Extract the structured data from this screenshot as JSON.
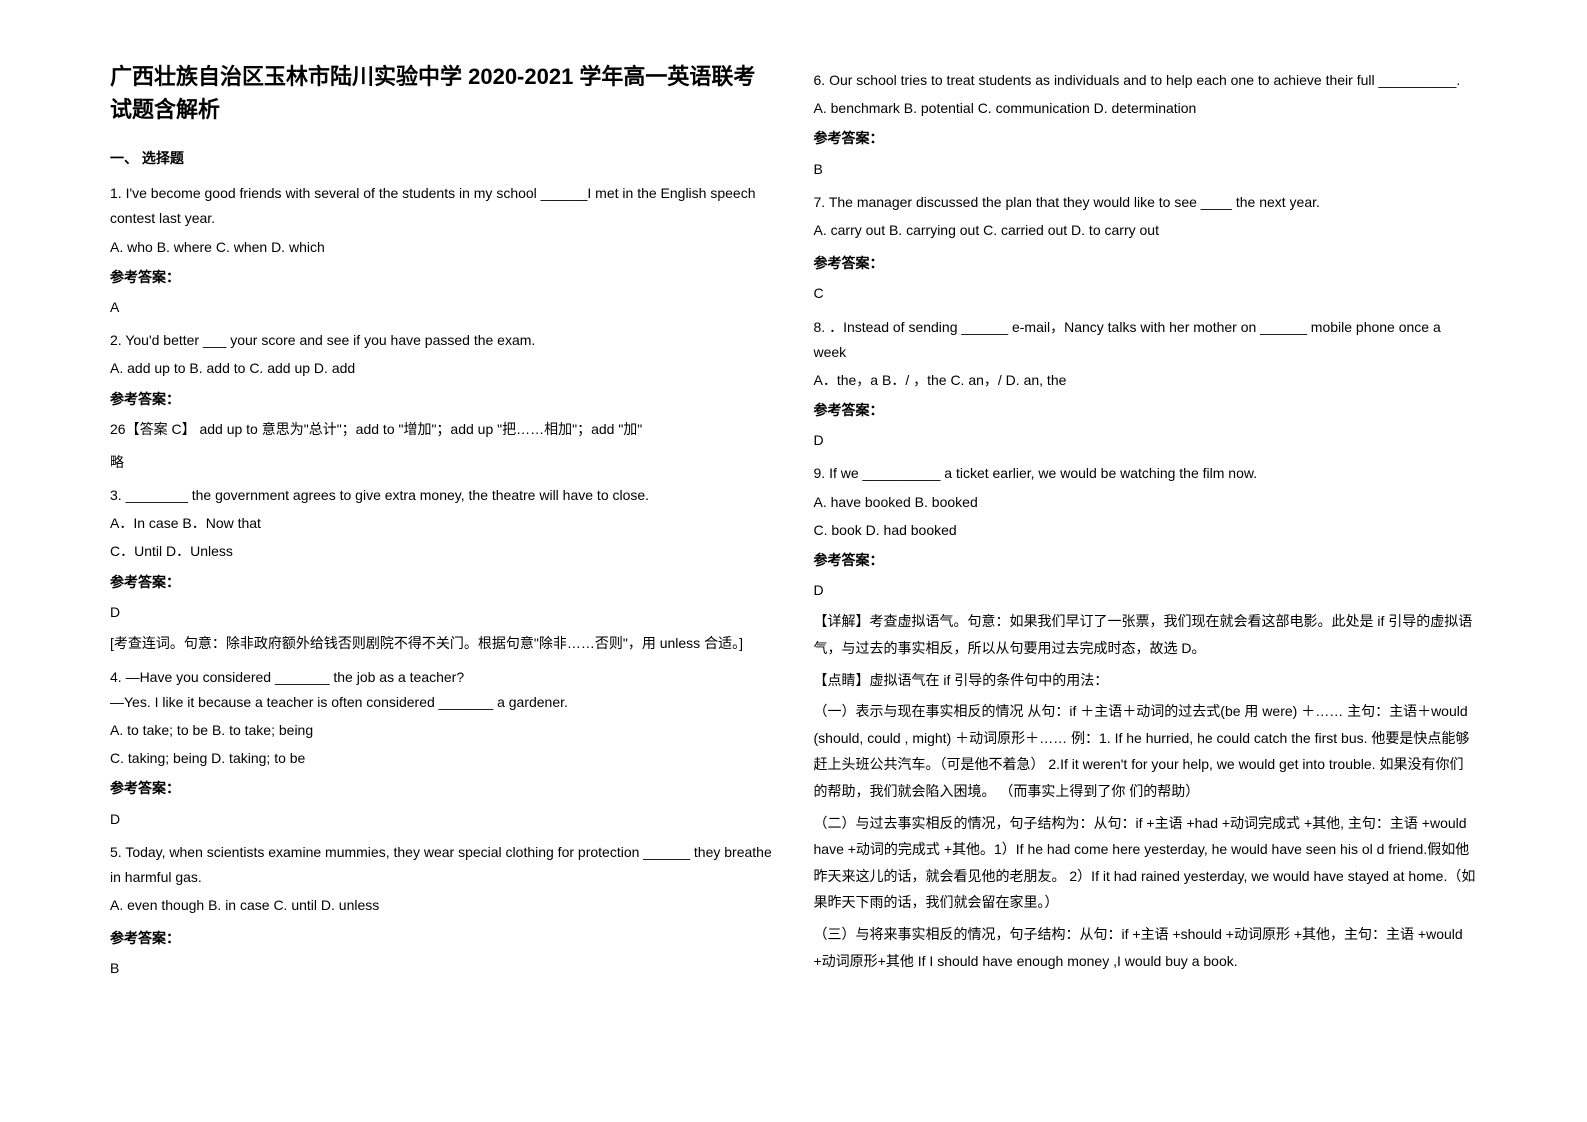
{
  "title": "广西壮族自治区玉林市陆川实验中学 2020-2021 学年高一英语联考试题含解析",
  "section1_header": "一、 选择题",
  "q1": {
    "text": "1. I've become good friends with several of the students in my school ______I met in the English speech contest last year.",
    "options": "   A. who        B. where      C. when      D. which",
    "answer_label": "参考答案：",
    "answer": "A"
  },
  "q2": {
    "text": "2. You'd better ___ your score and see if you have passed the exam.",
    "options": "  A. add up to   B. add to     C. add up      D. add",
    "answer_label": "参考答案：",
    "answer": "26【答案 C】 add up to 意思为\"总计\"；add to \"增加\"；add up \"把……相加\"；add \"加\"",
    "extra": "略"
  },
  "q3": {
    "text": "3. ________ the government agrees to give extra money, the theatre will have to close.",
    "options1": "A．In case       B．Now that",
    "options2": "C．Until        D．Unless",
    "answer_label": "参考答案：",
    "answer": "D",
    "explanation": "[考查连词。句意：除非政府额外给钱否则剧院不得不关门。根据句意\"除非……否则\"，用 unless 合适。]"
  },
  "q4": {
    "text": "4. —Have you considered _______ the job as a teacher?",
    "text2": "    —Yes. I like it because a teacher is often considered _______ a gardener.",
    "options1": "    A. to take; to be                           B. to take; being",
    "options2": "    C. taking; being                            D. taking; to be",
    "answer_label": "参考答案：",
    "answer": "D"
  },
  "q5": {
    "text": "5. Today, when scientists examine mummies, they wear special clothing for protection ______ they breathe in harmful gas.",
    "options": "A. even though  B. in case                    C. until  D. unless",
    "answer_label": "参考答案：",
    "answer": "B"
  },
  "q6": {
    "text": "6. Our school tries to treat students as individuals and to help each one to achieve          their full __________.",
    "options": "  A. benchmark B. potential      C. communication        D. determination",
    "answer_label": "参考答案：",
    "answer": "B"
  },
  "q7": {
    "text": "7. The manager discussed the plan that they would like to see ____ the next year.",
    "options": "A. carry out        B. carrying out      C. carried out      D. to carry out",
    "answer_label": "参考答案：",
    "answer": "C"
  },
  "q8": {
    "text": "8. ．Instead of sending ______ e-mail，Nancy talks with her mother on ______      mobile phone once a week",
    "options": "   A．the，a   B．/ ，the   C. an，/  D. an, the",
    "answer_label": "参考答案：",
    "answer": "D"
  },
  "q9": {
    "text": "9. If we __________ a ticket earlier, we would be watching the film now.",
    "options1": "A. have booked    B. booked",
    "options2": "C. book    D. had booked",
    "answer_label": "参考答案：",
    "answer": "D",
    "exp1": "【详解】考查虚拟语气。句意：如果我们早订了一张票，我们现在就会看这部电影。此处是 if 引导的虚拟语气，与过去的事实相反，所以从句要用过去完成时态，故选 D。",
    "exp2": "【点睛】虚拟语气在 if 引导的条件句中的用法：",
    "exp3": "（一）表示与现在事实相反的情况   从句：if ＋主语＋动词的过去式(be 用 were) ＋…… 主句：主语＋would (should, could , might) ＋动词原形＋…… 例：1. If he hurried, he could catch the first bus. 他要是快点能够赶上头班公共汽车。（可是他不着急） 2.If it weren't for your help, we would get into trouble. 如果没有你们的帮助，我们就会陷入困境。 （而事实上得到了你 们的帮助）",
    "exp4": "（二）与过去事实相反的情况，句子结构为：从句：if +主语 +had +动词完成式 +其他, 主句：主语 +would have +动词的完成式 +其他。1）If he had come here yesterday, he would have seen his ol d friend.假如他昨天来这儿的话，就会看见他的老朋友。 2）If it had rained yesterday, we would have stayed at home.（如果昨天下雨的话，我们就会留在家里。）",
    "exp5": "（三）与将来事实相反的情况，句子结构：从句：if +主语 +should +动词原形 +其他，主句：主语 +would +动词原形+其他     If I should have enough money ,I would buy a book."
  }
}
